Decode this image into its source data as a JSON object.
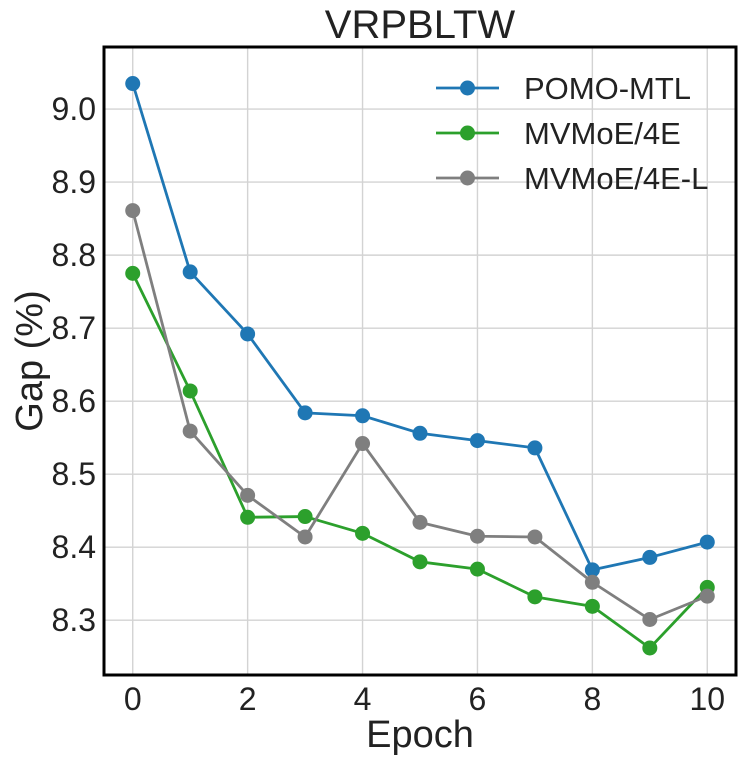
{
  "chart_data": {
    "type": "line",
    "title": "VRPBLTW",
    "xlabel": "Epoch",
    "ylabel": "Gap (%)",
    "xlim": [
      -0.5,
      10.5
    ],
    "ylim": [
      8.225,
      9.085
    ],
    "xticks": [
      0,
      2,
      4,
      6,
      8,
      10
    ],
    "xtick_labels": [
      "0",
      "2",
      "4",
      "6",
      "8",
      "10"
    ],
    "yticks": [
      8.3,
      8.4,
      8.5,
      8.6,
      8.7,
      8.8,
      8.9,
      9.0
    ],
    "ytick_labels": [
      "8.3",
      "8.4",
      "8.5",
      "8.6",
      "8.7",
      "8.8",
      "8.9",
      "9.0"
    ],
    "x": [
      0,
      1,
      2,
      3,
      4,
      5,
      6,
      7,
      8,
      9,
      10
    ],
    "grid": true,
    "legend_position": "top-right",
    "series": [
      {
        "name": "POMO-MTL",
        "color": "#1f77b4",
        "values": [
          9.035,
          8.777,
          8.692,
          8.584,
          8.58,
          8.556,
          8.546,
          8.536,
          8.369,
          8.386,
          8.407
        ]
      },
      {
        "name": "MVMoE/4E",
        "color": "#2ca02c",
        "values": [
          8.775,
          8.614,
          8.441,
          8.442,
          8.419,
          8.38,
          8.37,
          8.332,
          8.319,
          8.262,
          8.345
        ]
      },
      {
        "name": "MVMoE/4E-L",
        "color": "#7f7f7f",
        "values": [
          8.861,
          8.559,
          8.471,
          8.414,
          8.542,
          8.434,
          8.415,
          8.414,
          8.352,
          8.301,
          8.333
        ]
      }
    ]
  }
}
